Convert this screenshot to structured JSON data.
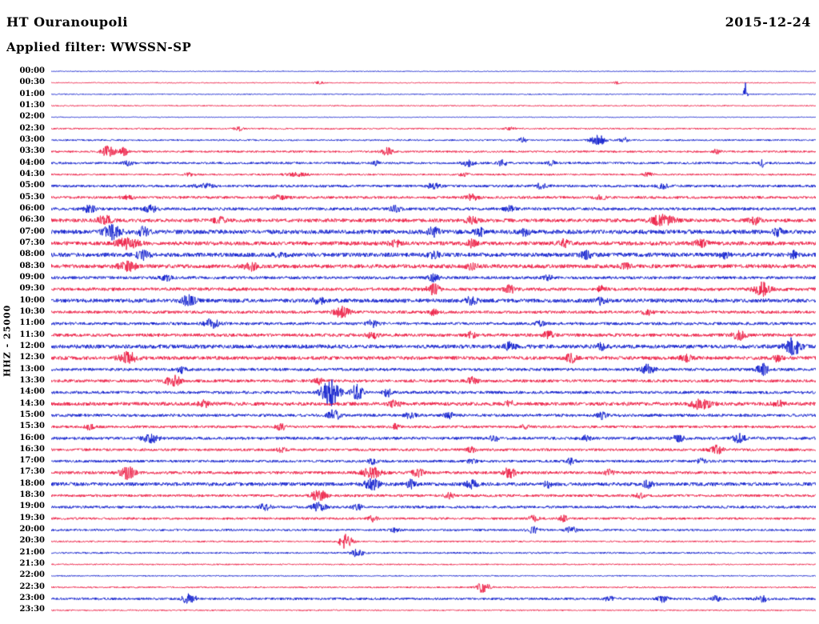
{
  "header": {
    "station": "HT Ouranoupoli",
    "date": "2015-12-24",
    "filter": "Applied filter: WWSSN-SP"
  },
  "chart_data": {
    "type": "heliplot-seismogram",
    "title": "HT Ouranoupoli",
    "date": "2015-12-24",
    "filter": "WWSSN-SP",
    "channel_label": "HHZ - 25000",
    "trace_duration_minutes": 30,
    "time_range": [
      "00:00",
      "23:30"
    ],
    "grid": false,
    "legend": "none",
    "colors": {
      "red": "#ec1740",
      "blue": "#0a18cc"
    },
    "color_key": {
      "b": "blue",
      "r": "red"
    },
    "amplitude_note": "n = background noise half-amplitude in px; e = bursts as [center_fraction_of_width, amplitude_px, gaussian_sigma_fraction]",
    "rows": [
      {
        "t": "00:00",
        "c": "b",
        "n": 0.5,
        "e": []
      },
      {
        "t": "00:30",
        "c": "r",
        "n": 0.6,
        "e": [
          [
            0.35,
            1.5,
            0.004
          ],
          [
            0.74,
            1.5,
            0.003
          ]
        ]
      },
      {
        "t": "01:00",
        "c": "b",
        "n": 0.6,
        "e": [
          [
            0.908,
            14,
            0.0015
          ]
        ]
      },
      {
        "t": "01:30",
        "c": "r",
        "n": 0.7,
        "e": []
      },
      {
        "t": "02:00",
        "c": "b",
        "n": 0.5,
        "e": []
      },
      {
        "t": "02:30",
        "c": "r",
        "n": 0.9,
        "e": [
          [
            0.245,
            2.5,
            0.004
          ],
          [
            0.6,
            1.5,
            0.005
          ]
        ]
      },
      {
        "t": "03:00",
        "c": "b",
        "n": 1.0,
        "e": [
          [
            0.617,
            3.5,
            0.004
          ],
          [
            0.715,
            6,
            0.007
          ],
          [
            0.75,
            3,
            0.005
          ]
        ]
      },
      {
        "t": "03:30",
        "c": "r",
        "n": 1.2,
        "e": [
          [
            0.075,
            7,
            0.006
          ],
          [
            0.095,
            5,
            0.004
          ],
          [
            0.44,
            5,
            0.005
          ],
          [
            0.87,
            2.5,
            0.004
          ]
        ]
      },
      {
        "t": "04:00",
        "c": "b",
        "n": 1.4,
        "e": [
          [
            0.1,
            3,
            0.004
          ],
          [
            0.425,
            2.5,
            0.003
          ],
          [
            0.545,
            4,
            0.005
          ],
          [
            0.59,
            3.5,
            0.004
          ],
          [
            0.655,
            3,
            0.004
          ],
          [
            0.93,
            5,
            0.002
          ]
        ]
      },
      {
        "t": "04:30",
        "c": "r",
        "n": 1.1,
        "e": [
          [
            0.18,
            2,
            0.004
          ],
          [
            0.32,
            2,
            0.01
          ],
          [
            0.54,
            2,
            0.005
          ],
          [
            0.78,
            2.5,
            0.004
          ]
        ]
      },
      {
        "t": "05:00",
        "c": "b",
        "n": 1.6,
        "e": [
          [
            0.2,
            2.5,
            0.008
          ],
          [
            0.5,
            3,
            0.006
          ],
          [
            0.64,
            3,
            0.005
          ],
          [
            0.8,
            2.5,
            0.005
          ]
        ]
      },
      {
        "t": "05:30",
        "c": "r",
        "n": 1.6,
        "e": [
          [
            0.1,
            2.5,
            0.006
          ],
          [
            0.3,
            3,
            0.006
          ],
          [
            0.55,
            3.5,
            0.006
          ],
          [
            0.72,
            2.5,
            0.005
          ]
        ]
      },
      {
        "t": "06:00",
        "c": "b",
        "n": 1.8,
        "e": [
          [
            0.05,
            5,
            0.005
          ],
          [
            0.13,
            4,
            0.006
          ],
          [
            0.45,
            3.5,
            0.005
          ],
          [
            0.6,
            3,
            0.005
          ]
        ]
      },
      {
        "t": "06:30",
        "c": "r",
        "n": 2.2,
        "e": [
          [
            0.07,
            6,
            0.006
          ],
          [
            0.22,
            3.5,
            0.005
          ],
          [
            0.55,
            4,
            0.006
          ],
          [
            0.8,
            6,
            0.012
          ],
          [
            0.92,
            4,
            0.006
          ]
        ]
      },
      {
        "t": "07:00",
        "c": "b",
        "n": 2.6,
        "e": [
          [
            0.08,
            8,
            0.008
          ],
          [
            0.12,
            6,
            0.005
          ],
          [
            0.5,
            5,
            0.005
          ],
          [
            0.56,
            5,
            0.004
          ],
          [
            0.62,
            4,
            0.004
          ],
          [
            0.95,
            4,
            0.004
          ]
        ]
      },
      {
        "t": "07:30",
        "c": "r",
        "n": 2.4,
        "e": [
          [
            0.1,
            6,
            0.01
          ],
          [
            0.45,
            4,
            0.005
          ],
          [
            0.55,
            4,
            0.004
          ],
          [
            0.67,
            4,
            0.005
          ],
          [
            0.85,
            4,
            0.006
          ]
        ]
      },
      {
        "t": "08:00",
        "c": "b",
        "n": 2.6,
        "e": [
          [
            0.12,
            5,
            0.006
          ],
          [
            0.3,
            3.5,
            0.005
          ],
          [
            0.5,
            4,
            0.005
          ],
          [
            0.7,
            4,
            0.005
          ],
          [
            0.88,
            3.5,
            0.004
          ],
          [
            0.97,
            4,
            0.003
          ]
        ]
      },
      {
        "t": "08:30",
        "c": "r",
        "n": 2.4,
        "e": [
          [
            0.1,
            5,
            0.008
          ],
          [
            0.26,
            5,
            0.006
          ],
          [
            0.55,
            3.5,
            0.005
          ],
          [
            0.75,
            3,
            0.005
          ]
        ]
      },
      {
        "t": "09:00",
        "c": "b",
        "n": 1.8,
        "e": [
          [
            0.15,
            3.5,
            0.005
          ],
          [
            0.5,
            4,
            0.005
          ],
          [
            0.65,
            3,
            0.004
          ]
        ]
      },
      {
        "t": "09:30",
        "c": "r",
        "n": 2.0,
        "e": [
          [
            0.5,
            6,
            0.006
          ],
          [
            0.6,
            4.5,
            0.005
          ],
          [
            0.72,
            4,
            0.004
          ],
          [
            0.93,
            8,
            0.007
          ]
        ]
      },
      {
        "t": "10:00",
        "c": "b",
        "n": 2.4,
        "e": [
          [
            0.18,
            6,
            0.006
          ],
          [
            0.35,
            4,
            0.005
          ],
          [
            0.55,
            4.5,
            0.005
          ],
          [
            0.72,
            4,
            0.005
          ]
        ]
      },
      {
        "t": "10:30",
        "c": "r",
        "n": 1.8,
        "e": [
          [
            0.38,
            6,
            0.007
          ],
          [
            0.5,
            3.5,
            0.004
          ],
          [
            0.78,
            3.5,
            0.005
          ]
        ]
      },
      {
        "t": "11:00",
        "c": "b",
        "n": 1.8,
        "e": [
          [
            0.21,
            6,
            0.006
          ],
          [
            0.42,
            4,
            0.005
          ],
          [
            0.64,
            3,
            0.004
          ]
        ]
      },
      {
        "t": "11:30",
        "c": "r",
        "n": 2.0,
        "e": [
          [
            0.42,
            4,
            0.005
          ],
          [
            0.55,
            3.5,
            0.004
          ],
          [
            0.65,
            4,
            0.005
          ],
          [
            0.9,
            6,
            0.006
          ]
        ]
      },
      {
        "t": "12:00",
        "c": "b",
        "n": 2.4,
        "e": [
          [
            0.6,
            4.5,
            0.005
          ],
          [
            0.72,
            4,
            0.004
          ],
          [
            0.97,
            11,
            0.007
          ]
        ]
      },
      {
        "t": "12:30",
        "c": "r",
        "n": 2.2,
        "e": [
          [
            0.1,
            7,
            0.008
          ],
          [
            0.68,
            5,
            0.005
          ],
          [
            0.83,
            4,
            0.005
          ],
          [
            0.95,
            4,
            0.004
          ]
        ]
      },
      {
        "t": "13:00",
        "c": "b",
        "n": 1.8,
        "e": [
          [
            0.17,
            4,
            0.004
          ],
          [
            0.78,
            5.5,
            0.006
          ],
          [
            0.93,
            7,
            0.005
          ]
        ]
      },
      {
        "t": "13:30",
        "c": "r",
        "n": 1.8,
        "e": [
          [
            0.16,
            6.5,
            0.007
          ],
          [
            0.35,
            3.5,
            0.004
          ],
          [
            0.55,
            4,
            0.005
          ]
        ]
      },
      {
        "t": "14:00",
        "c": "b",
        "n": 1.8,
        "e": [
          [
            0.365,
            16,
            0.008
          ],
          [
            0.4,
            10,
            0.005
          ],
          [
            0.44,
            5,
            0.004
          ]
        ]
      },
      {
        "t": "14:30",
        "c": "r",
        "n": 2.2,
        "e": [
          [
            0.2,
            3.5,
            0.005
          ],
          [
            0.45,
            4,
            0.005
          ],
          [
            0.6,
            3.5,
            0.004
          ],
          [
            0.85,
            6,
            0.009
          ],
          [
            0.95,
            4,
            0.005
          ]
        ]
      },
      {
        "t": "15:00",
        "c": "b",
        "n": 1.8,
        "e": [
          [
            0.37,
            7,
            0.005
          ],
          [
            0.47,
            4.5,
            0.004
          ],
          [
            0.52,
            4,
            0.004
          ],
          [
            0.72,
            4,
            0.004
          ]
        ]
      },
      {
        "t": "15:30",
        "c": "r",
        "n": 1.6,
        "e": [
          [
            0.05,
            3,
            0.004
          ],
          [
            0.3,
            3.5,
            0.005
          ],
          [
            0.45,
            3,
            0.004
          ],
          [
            0.62,
            2.5,
            0.004
          ]
        ]
      },
      {
        "t": "16:00",
        "c": "b",
        "n": 1.8,
        "e": [
          [
            0.13,
            5.5,
            0.007
          ],
          [
            0.58,
            3.5,
            0.004
          ],
          [
            0.7,
            3,
            0.004
          ],
          [
            0.82,
            4,
            0.005
          ],
          [
            0.9,
            5.5,
            0.005
          ]
        ]
      },
      {
        "t": "16:30",
        "c": "r",
        "n": 1.6,
        "e": [
          [
            0.3,
            3,
            0.004
          ],
          [
            0.55,
            3,
            0.004
          ],
          [
            0.87,
            5,
            0.006
          ]
        ]
      },
      {
        "t": "17:00",
        "c": "b",
        "n": 1.6,
        "e": [
          [
            0.42,
            3.5,
            0.004
          ],
          [
            0.55,
            3,
            0.004
          ],
          [
            0.68,
            3.5,
            0.004
          ],
          [
            0.85,
            3,
            0.004
          ]
        ]
      },
      {
        "t": "17:30",
        "c": "r",
        "n": 1.8,
        "e": [
          [
            0.1,
            7.5,
            0.007
          ],
          [
            0.42,
            6,
            0.009
          ],
          [
            0.48,
            5,
            0.005
          ],
          [
            0.6,
            6,
            0.006
          ],
          [
            0.73,
            3.5,
            0.004
          ]
        ]
      },
      {
        "t": "18:00",
        "c": "b",
        "n": 2.2,
        "e": [
          [
            0.42,
            6,
            0.007
          ],
          [
            0.47,
            5,
            0.004
          ],
          [
            0.55,
            4.5,
            0.005
          ],
          [
            0.65,
            3.5,
            0.004
          ],
          [
            0.78,
            4,
            0.005
          ]
        ]
      },
      {
        "t": "18:30",
        "c": "r",
        "n": 1.6,
        "e": [
          [
            0.35,
            6.5,
            0.007
          ],
          [
            0.52,
            3.5,
            0.004
          ],
          [
            0.77,
            3,
            0.004
          ]
        ]
      },
      {
        "t": "19:00",
        "c": "b",
        "n": 1.6,
        "e": [
          [
            0.28,
            4,
            0.005
          ],
          [
            0.35,
            6,
            0.006
          ],
          [
            0.4,
            4,
            0.004
          ]
        ]
      },
      {
        "t": "19:30",
        "c": "r",
        "n": 1.4,
        "e": [
          [
            0.42,
            3.5,
            0.004
          ],
          [
            0.63,
            4,
            0.005
          ],
          [
            0.67,
            3.5,
            0.004
          ]
        ]
      },
      {
        "t": "20:00",
        "c": "b",
        "n": 1.3,
        "e": [
          [
            0.45,
            2.5,
            0.004
          ],
          [
            0.63,
            4.5,
            0.005
          ],
          [
            0.68,
            4,
            0.005
          ]
        ]
      },
      {
        "t": "20:30",
        "c": "r",
        "n": 1.0,
        "e": [
          [
            0.385,
            9,
            0.006
          ]
        ]
      },
      {
        "t": "21:00",
        "c": "b",
        "n": 1.0,
        "e": [
          [
            0.4,
            4.5,
            0.006
          ]
        ]
      },
      {
        "t": "21:30",
        "c": "r",
        "n": 0.8,
        "e": []
      },
      {
        "t": "22:00",
        "c": "b",
        "n": 0.7,
        "e": []
      },
      {
        "t": "22:30",
        "c": "r",
        "n": 0.9,
        "e": [
          [
            0.565,
            6.5,
            0.006
          ]
        ]
      },
      {
        "t": "23:00",
        "c": "b",
        "n": 1.4,
        "e": [
          [
            0.18,
            5.5,
            0.007
          ],
          [
            0.73,
            3.5,
            0.004
          ],
          [
            0.8,
            4,
            0.005
          ],
          [
            0.87,
            3.5,
            0.004
          ],
          [
            0.93,
            5,
            0.005
          ]
        ]
      },
      {
        "t": "23:30",
        "c": "r",
        "n": 0.8,
        "e": []
      }
    ]
  }
}
